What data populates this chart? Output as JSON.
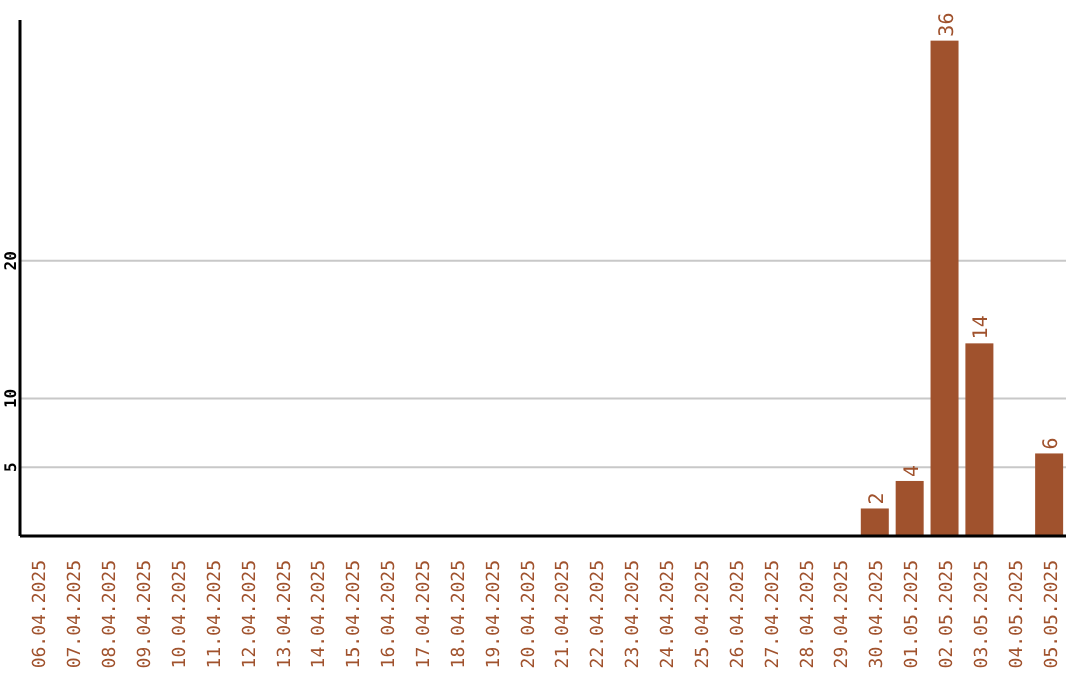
{
  "chart_data": {
    "type": "bar",
    "categories": [
      "06.04.2025",
      "07.04.2025",
      "08.04.2025",
      "09.04.2025",
      "10.04.2025",
      "11.04.2025",
      "12.04.2025",
      "13.04.2025",
      "14.04.2025",
      "15.04.2025",
      "16.04.2025",
      "17.04.2025",
      "18.04.2025",
      "19.04.2025",
      "20.04.2025",
      "21.04.2025",
      "22.04.2025",
      "23.04.2025",
      "24.04.2025",
      "25.04.2025",
      "26.04.2025",
      "27.04.2025",
      "28.04.2025",
      "29.04.2025",
      "30.04.2025",
      "01.05.2025",
      "02.05.2025",
      "03.05.2025",
      "04.05.2025",
      "05.05.2025"
    ],
    "values": [
      0,
      0,
      0,
      0,
      0,
      0,
      0,
      0,
      0,
      0,
      0,
      0,
      0,
      0,
      0,
      0,
      0,
      0,
      0,
      0,
      0,
      0,
      0,
      0,
      2,
      4,
      36,
      14,
      0,
      6
    ],
    "value_labels": [
      null,
      null,
      null,
      null,
      null,
      null,
      null,
      null,
      null,
      null,
      null,
      null,
      null,
      null,
      null,
      null,
      null,
      null,
      null,
      null,
      null,
      null,
      null,
      null,
      "2",
      "4",
      "36",
      "14",
      null,
      "6"
    ],
    "color": "#a0522d",
    "ylim": [
      0,
      37.5
    ],
    "yticks": [
      5,
      10,
      20
    ],
    "grid": "y"
  }
}
